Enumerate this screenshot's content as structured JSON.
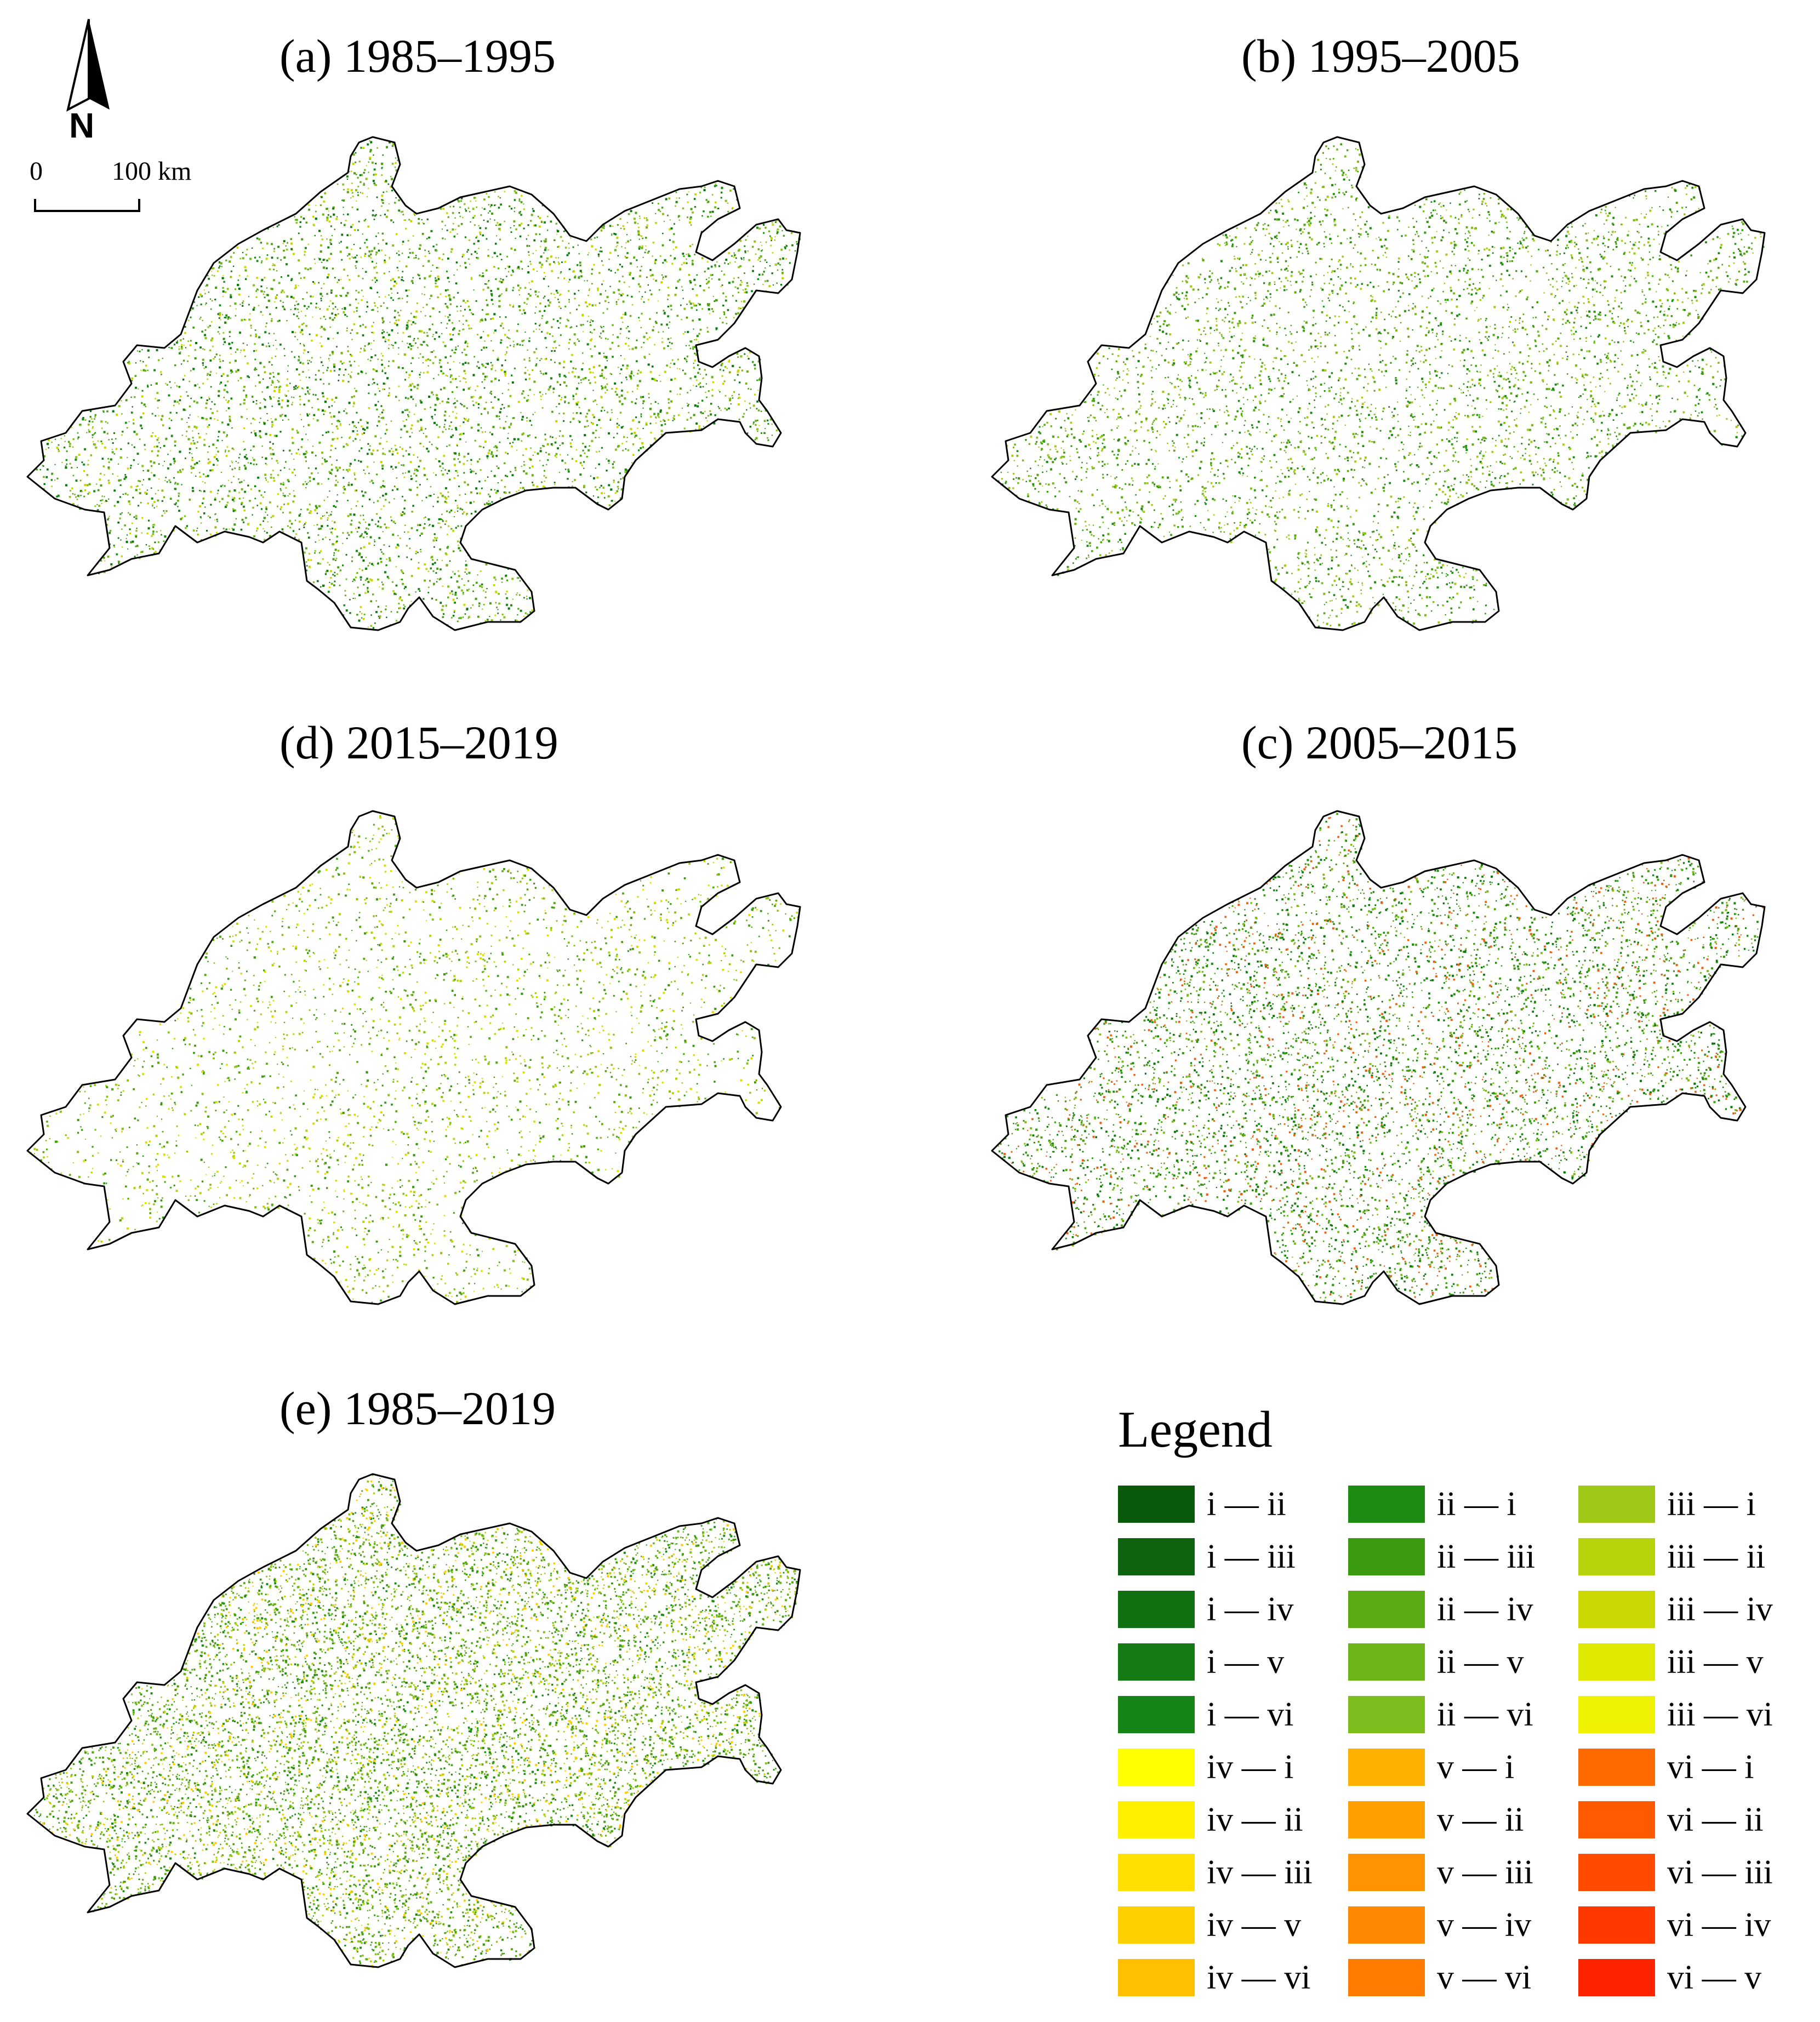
{
  "north_arrow": {
    "letter": "N"
  },
  "scale_bar": {
    "start_label": "0",
    "end_label": "100 km"
  },
  "panels": [
    {
      "id": "a",
      "title": "(a) 1985–1995",
      "colors": [
        "#0b7a0b",
        "#1e8c12",
        "#4aa112",
        "#6bb51a",
        "#8cc21e",
        "#c8d600"
      ],
      "density": 1.0
    },
    {
      "id": "b",
      "title": "(b) 1995–2005",
      "colors": [
        "#1e8c12",
        "#3a9a10",
        "#5aaa16",
        "#7cbc1c",
        "#a5cb1e"
      ],
      "density": 0.85
    },
    {
      "id": "d",
      "title": "(d) 2015–2019",
      "colors": [
        "#3a9a10",
        "#5aaa16",
        "#8cc21e",
        "#b5d20a",
        "#d9e000"
      ],
      "density": 0.55
    },
    {
      "id": "c",
      "title": "(c) 2005–2015",
      "colors": [
        "#0b7a0b",
        "#1e8c12",
        "#3a9a10",
        "#4aa112",
        "#7cbc1c",
        "#e86414"
      ],
      "density": 1.2
    },
    {
      "id": "e",
      "title": "(e) 1985–2019",
      "colors": [
        "#1e8c12",
        "#3a9a10",
        "#4aa112",
        "#5aaa16",
        "#6bb51a",
        "#8cc21e",
        "#b5d20a",
        "#ffcc00"
      ],
      "density": 1.8
    }
  ],
  "legend": {
    "title": "Legend",
    "items": [
      {
        "label": "i — ii",
        "color": "#0b5a0b"
      },
      {
        "label": "i — iii",
        "color": "#0e6410"
      },
      {
        "label": "i — iv",
        "color": "#107012"
      },
      {
        "label": "i — v",
        "color": "#137a14"
      },
      {
        "label": "i — vi",
        "color": "#168416"
      },
      {
        "label": "iv — i",
        "color": "#ffff00"
      },
      {
        "label": "iv — ii",
        "color": "#fff000"
      },
      {
        "label": "iv — iii",
        "color": "#ffe000"
      },
      {
        "label": "iv — v",
        "color": "#ffd000"
      },
      {
        "label": "iv — vi",
        "color": "#ffc000"
      },
      {
        "label": "ii — i",
        "color": "#1e8c12"
      },
      {
        "label": "ii — iii",
        "color": "#3a9a10"
      },
      {
        "label": "ii — iv",
        "color": "#5aaa16"
      },
      {
        "label": "ii — v",
        "color": "#6bb51a"
      },
      {
        "label": "ii — vi",
        "color": "#7cbc1c"
      },
      {
        "label": "v — i",
        "color": "#ffb000"
      },
      {
        "label": "v — ii",
        "color": "#ffa000"
      },
      {
        "label": "v — iii",
        "color": "#ff9400"
      },
      {
        "label": "v — iv",
        "color": "#ff8800"
      },
      {
        "label": "v — vi",
        "color": "#ff7c00"
      },
      {
        "label": "iii — i",
        "color": "#a0c818"
      },
      {
        "label": "iii — ii",
        "color": "#b5d20a"
      },
      {
        "label": "iii — iv",
        "color": "#c8d800"
      },
      {
        "label": "iii — v",
        "color": "#dfe800"
      },
      {
        "label": "iii — vi",
        "color": "#eef200"
      },
      {
        "label": "vi — i",
        "color": "#ff6a00"
      },
      {
        "label": "vi — ii",
        "color": "#ff5a00"
      },
      {
        "label": "vi — iii",
        "color": "#ff4a00"
      },
      {
        "label": "vi — iv",
        "color": "#ff3800"
      },
      {
        "label": "vi — v",
        "color": "#ff2400"
      }
    ]
  }
}
